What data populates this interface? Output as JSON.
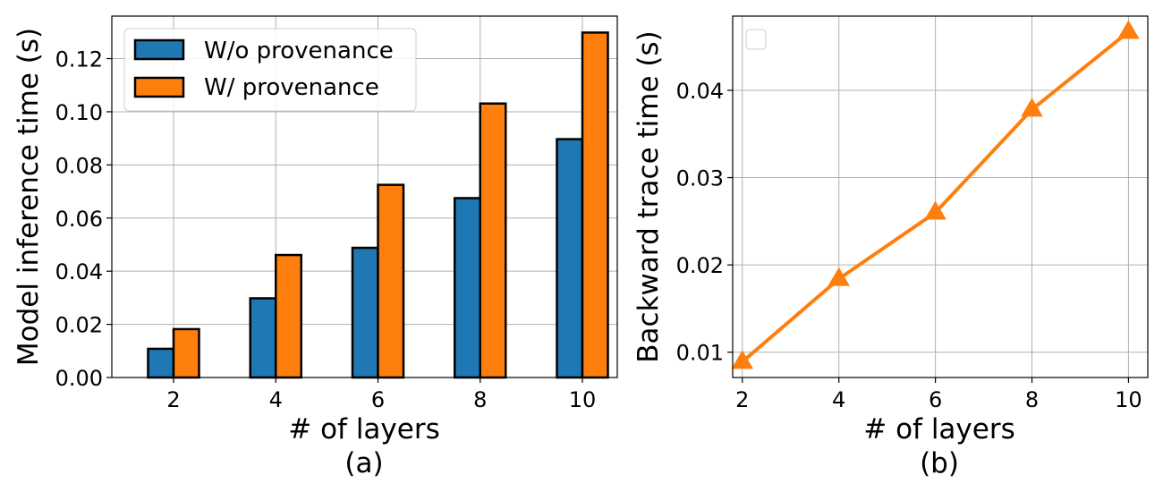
{
  "chart_data": [
    {
      "type": "bar",
      "panel_label": "(a)",
      "xlabel": "# of layers",
      "ylabel": "Model inference time (s)",
      "categories": [
        "2",
        "4",
        "6",
        "8",
        "10"
      ],
      "series": [
        {
          "name": "W/o provenance",
          "color": "#1f77b4",
          "values": [
            0.0108,
            0.0298,
            0.0488,
            0.0675,
            0.0897
          ]
        },
        {
          "name": "W/ provenance",
          "color": "#ff7f0e",
          "values": [
            0.0182,
            0.0461,
            0.0725,
            0.1031,
            0.1298
          ]
        }
      ],
      "ylim": [
        0,
        0.136
      ],
      "yticks": [
        "0.00",
        "0.02",
        "0.04",
        "0.06",
        "0.08",
        "0.10",
        "0.12"
      ],
      "grid": true,
      "legend": "top-left"
    },
    {
      "type": "line",
      "panel_label": "(b)",
      "xlabel": "# of layers",
      "ylabel": "Backward trace time (s)",
      "x": [
        2,
        4,
        6,
        8,
        10
      ],
      "series": [
        {
          "color": "#ff7f0e",
          "marker": "triangle",
          "values": [
            0.0089,
            0.0184,
            0.026,
            0.0378,
            0.0467
          ]
        }
      ],
      "xlim": [
        1.8,
        10.4
      ],
      "ylim": [
        0.0071,
        0.0485
      ],
      "xticks": [
        "2",
        "4",
        "6",
        "8",
        "10"
      ],
      "yticks": [
        "0.01",
        "0.02",
        "0.03",
        "0.04"
      ],
      "grid": true,
      "legend": "top-left (empty)"
    }
  ]
}
